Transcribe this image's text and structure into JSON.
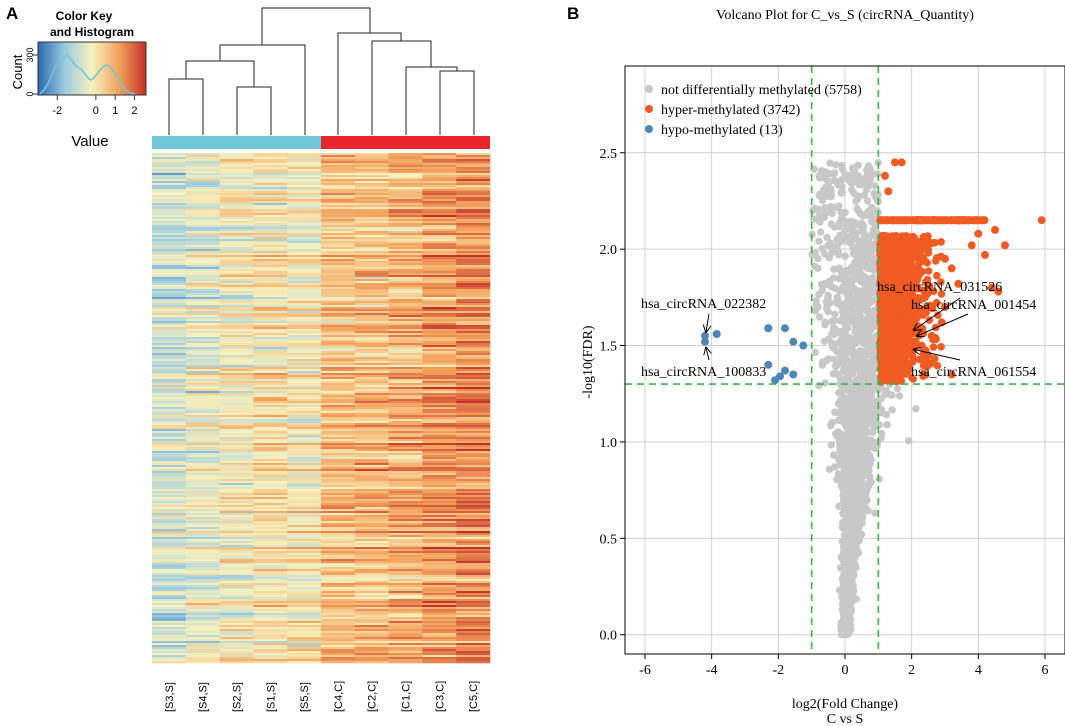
{
  "panels": {
    "a_label": "A",
    "b_label": "B"
  },
  "chart_data": [
    {
      "type": "heatmap",
      "panel": "A",
      "title": "",
      "columns": [
        "[S3,S]",
        "[S4,S]",
        "[S2,S]",
        "[S1,S]",
        "[S5,S]",
        "[C4,C]",
        "[C2,C]",
        "[C1,C]",
        "[C3,C]",
        "[C5,C]"
      ],
      "groups": [
        {
          "name": "S",
          "color": "#6ec6d6",
          "count": 5
        },
        {
          "name": "C",
          "color": "#e8262b",
          "count": 5
        }
      ],
      "column_mean_value": [
        -0.8,
        -0.5,
        -0.2,
        0.0,
        -0.1,
        0.6,
        0.7,
        0.9,
        1.2,
        1.4
      ],
      "dendrogram": "two clusters: S samples and C samples",
      "color_key": {
        "title_line1": "Color Key",
        "title_line2": "and Histogram",
        "ylabel": "Count",
        "xlabel": "Value",
        "yticks": [
          0,
          300
        ],
        "xticks": [
          -2,
          0,
          1,
          2
        ],
        "xrange": [
          -3,
          2.6
        ],
        "colormap": [
          "#2b6ab0",
          "#9ccbe0",
          "#f7f1be",
          "#f4a25c",
          "#c0302b"
        ],
        "histogram_line_color": "#6ec6d6"
      }
    },
    {
      "type": "scatter",
      "panel": "B",
      "title": "Volcano Plot for C_vs_S (circRNA_Quantity)",
      "xlabel": "log2(Fold Change)",
      "xlabel2": "C vs S",
      "ylabel": "-log10(FDR)",
      "xlim": [
        -6.6,
        6.6
      ],
      "ylim": [
        -0.1,
        2.95
      ],
      "xticks": [
        -6,
        -4,
        -2,
        0,
        2,
        4,
        6
      ],
      "yticks": [
        0.0,
        0.5,
        1.0,
        1.5,
        2.0,
        2.5
      ],
      "grid": true,
      "thresholds": {
        "fold_change_log2": [
          -1,
          1
        ],
        "neg_log10_fdr": 1.3
      },
      "legend_position": "top-left",
      "series": [
        {
          "name": "not differentially methylated (5758)",
          "color": "#c8c8c8"
        },
        {
          "name": "hyper-methylated (3742)",
          "color": "#f05a23"
        },
        {
          "name": "hypo-methylated (13)",
          "color": "#4f86b8",
          "points": [
            [
              -4.2,
              1.55
            ],
            [
              -4.2,
              1.52
            ],
            [
              -3.85,
              1.56
            ],
            [
              -2.3,
              1.59
            ],
            [
              -2.3,
              1.59
            ],
            [
              -1.8,
              1.59
            ],
            [
              -1.55,
              1.52
            ],
            [
              -2.3,
              1.4
            ],
            [
              -1.8,
              1.37
            ],
            [
              -1.55,
              1.35
            ],
            [
              -1.95,
              1.34
            ],
            [
              -1.25,
              1.5
            ],
            [
              -2.1,
              1.32
            ]
          ]
        }
      ],
      "hyper_outliers": [
        [
          1.2,
          2.38
        ],
        [
          1.5,
          2.45
        ],
        [
          1.7,
          2.45
        ],
        [
          1.3,
          2.3
        ],
        [
          5.9,
          2.15
        ],
        [
          4.8,
          2.02
        ],
        [
          4.2,
          1.97
        ],
        [
          3.8,
          2.02
        ],
        [
          3.0,
          1.95
        ],
        [
          3.4,
          1.82
        ],
        [
          4.4,
          1.8
        ],
        [
          4.6,
          1.78
        ],
        [
          2.6,
          1.55
        ],
        [
          2.9,
          1.62
        ],
        [
          3.0,
          1.7
        ],
        [
          2.5,
          1.45
        ],
        [
          3.2,
          1.35
        ],
        [
          2.4,
          1.75
        ],
        [
          3.2,
          1.9
        ],
        [
          4.0,
          2.08
        ],
        [
          4.5,
          2.1
        ],
        [
          2.2,
          1.9
        ]
      ],
      "annotations": [
        {
          "text": "hsa_circRNA_022382",
          "x": -4.2,
          "y": 1.53
        },
        {
          "text": "hsa_circRNA_100833",
          "x": -4.2,
          "y": 1.52
        },
        {
          "text": "hsa_circRNA_031526",
          "x": 2.0,
          "y": 1.58
        },
        {
          "text": "hsa_circRNA_001454",
          "x": 2.1,
          "y": 1.55
        },
        {
          "text": "hsa_circRNA_061554",
          "x": 2.0,
          "y": 1.48
        }
      ]
    }
  ]
}
